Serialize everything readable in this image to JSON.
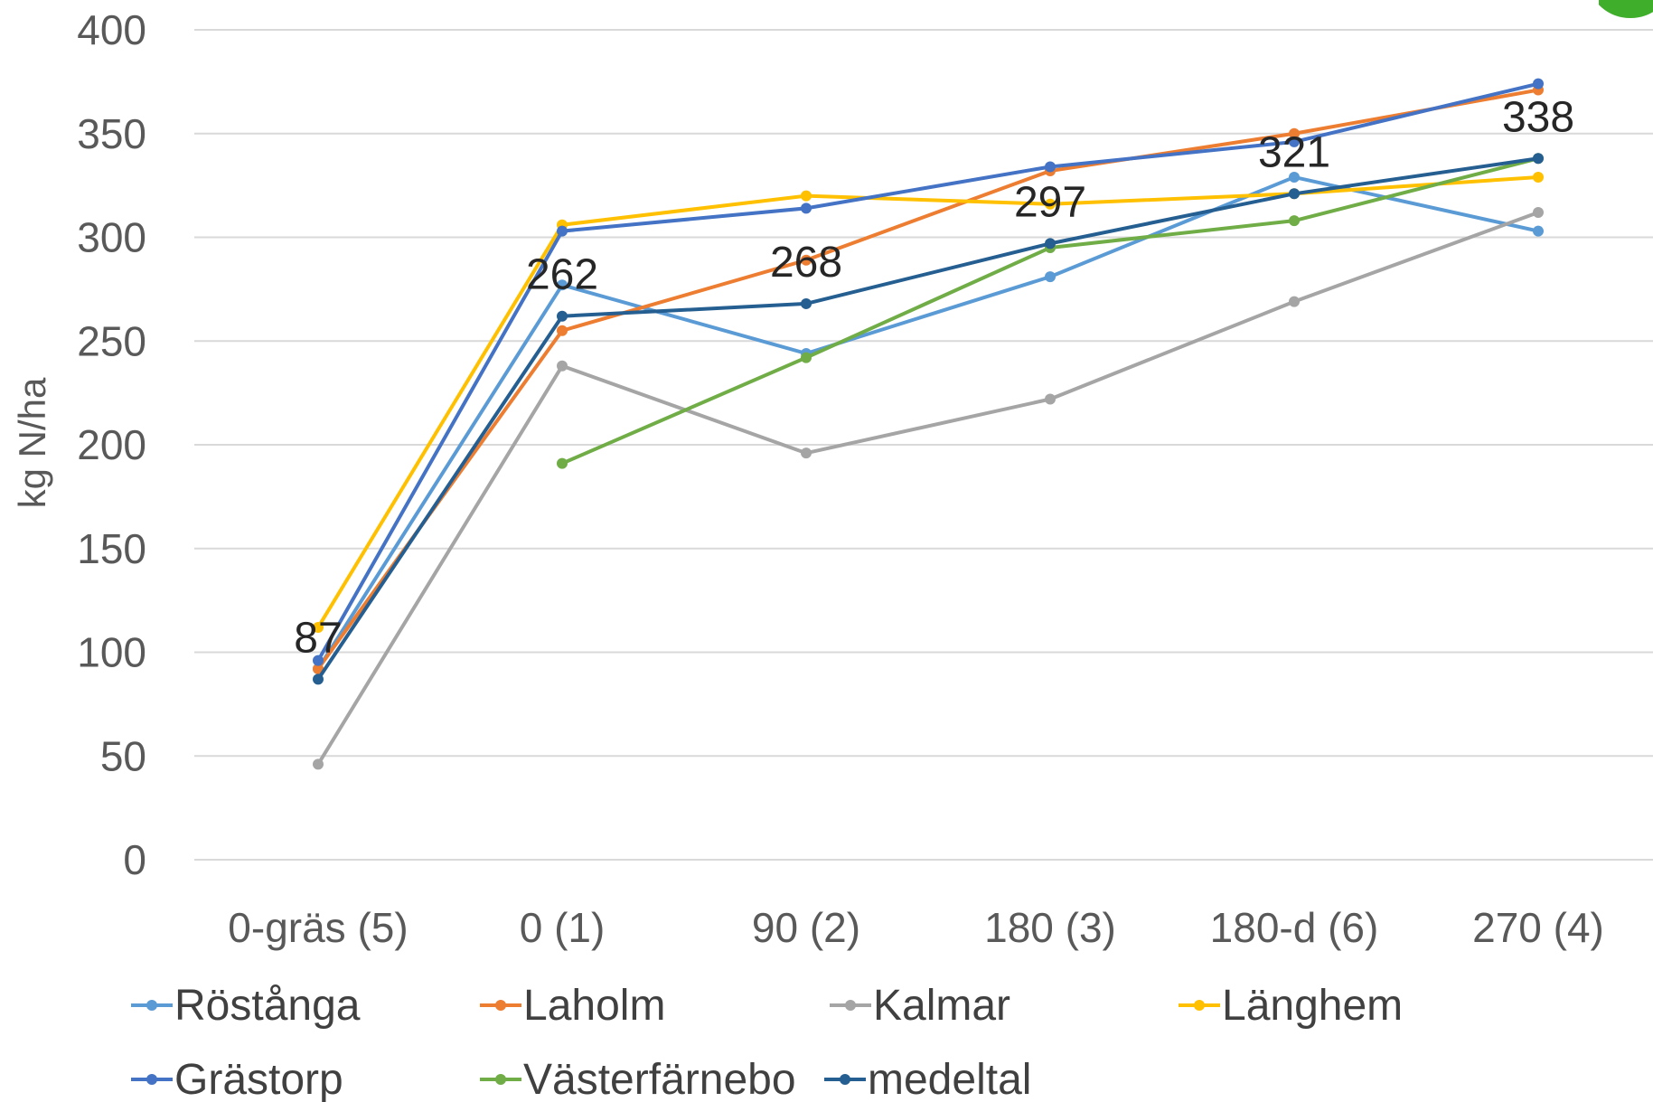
{
  "chart_data": {
    "type": "line",
    "ylabel": "kg N/ha",
    "xlabel": "",
    "ylim": [
      0,
      400
    ],
    "yticks": [
      0,
      50,
      100,
      150,
      200,
      250,
      300,
      350,
      400
    ],
    "grid": true,
    "legend_position": "bottom",
    "categories": [
      "0-gräs (5)",
      "0 (1)",
      "90 (2)",
      "180 (3)",
      "180-d (6)",
      "270 (4)"
    ],
    "series": [
      {
        "name": "Röstånga",
        "color": "#5b9bd5",
        "values": [
          92,
          277,
          244,
          281,
          329,
          303
        ]
      },
      {
        "name": "Laholm",
        "color": "#ed7d31",
        "values": [
          92,
          255,
          289,
          332,
          350,
          371
        ]
      },
      {
        "name": "Kalmar",
        "color": "#a5a5a5",
        "values": [
          46,
          238,
          196,
          222,
          269,
          312
        ]
      },
      {
        "name": "Länghem",
        "color": "#ffc000",
        "values": [
          112,
          306,
          320,
          316,
          321,
          329
        ]
      },
      {
        "name": "Grästorp",
        "color": "#4472c4",
        "values": [
          96,
          303,
          314,
          334,
          346,
          374
        ]
      },
      {
        "name": "Västerfärnebo",
        "color": "#70ad47",
        "values": [
          null,
          191,
          242,
          295,
          308,
          338
        ]
      },
      {
        "name": "medeltal",
        "color": "#255e91",
        "values": [
          87,
          262,
          268,
          297,
          321,
          338
        ],
        "data_labels": [
          "87",
          "262",
          "268",
          "297",
          "321",
          "338"
        ]
      }
    ]
  }
}
